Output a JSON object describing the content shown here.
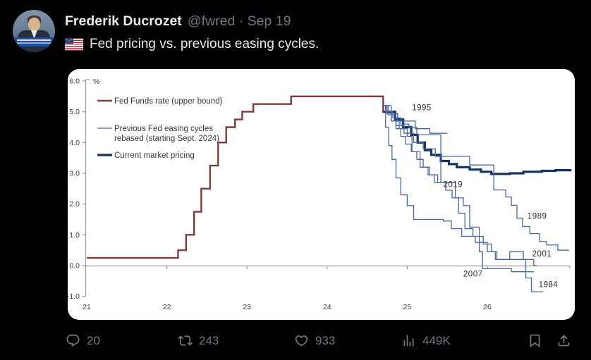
{
  "post": {
    "author": "Frederik Ducrozet",
    "meta": "@fwred · Sep 19",
    "flag_icon": "us-flag",
    "text": "Fed pricing vs. previous easing cycles."
  },
  "engagement": {
    "replies": "20",
    "reposts": "243",
    "likes": "933",
    "views": "449K"
  },
  "chart_data": {
    "type": "line",
    "title": "",
    "unit_label": "%",
    "xlabel": "",
    "ylabel": "%",
    "xlim": [
      20.95,
      27.1
    ],
    "ylim": [
      -1.0,
      6.0
    ],
    "x_ticks": [
      21,
      22,
      23,
      24,
      25,
      26
    ],
    "y_ticks": [
      6.0,
      5.0,
      4.0,
      3.0,
      2.0,
      1.0,
      0.0,
      -1.0
    ],
    "grid": false,
    "legend_position": "top-left",
    "colors": {
      "fed_funds": "#7e3b3b",
      "previous_cycles": "#4a67a0",
      "current_pricing": "#16325f",
      "axis": "#999999"
    },
    "legend": [
      {
        "label": [
          "Fed Funds rate (upper bound)"
        ],
        "color": "#7e3b3b",
        "width": 2.4
      },
      {
        "label": [
          "Previous Fed easing cycles",
          "rebased (starting Sept. 2024)"
        ],
        "color": "#4a67a0",
        "width": 1.3
      },
      {
        "label": [
          "Current market pricing"
        ],
        "color": "#16325f",
        "width": 3.2
      }
    ],
    "series": [
      {
        "name": "Fed Funds rate (upper bound)",
        "color": "#7e3b3b",
        "width": 2.4,
        "step": true,
        "points": [
          [
            21.0,
            0.25
          ],
          [
            22.14,
            0.5
          ],
          [
            22.24,
            1.0
          ],
          [
            22.34,
            1.75
          ],
          [
            22.43,
            2.5
          ],
          [
            22.54,
            3.25
          ],
          [
            22.64,
            4.0
          ],
          [
            22.74,
            4.5
          ],
          [
            22.85,
            4.75
          ],
          [
            22.94,
            5.0
          ],
          [
            23.08,
            5.25
          ],
          [
            23.55,
            5.5
          ],
          [
            24.7,
            5.0
          ],
          [
            24.72,
            5.0
          ]
        ]
      },
      {
        "name": "Current market pricing",
        "color": "#16325f",
        "width": 3.2,
        "step": true,
        "points": [
          [
            24.7,
            5.0
          ],
          [
            24.85,
            4.75
          ],
          [
            24.95,
            4.5
          ],
          [
            25.05,
            4.25
          ],
          [
            25.13,
            4.0
          ],
          [
            25.22,
            3.75
          ],
          [
            25.3,
            3.6
          ],
          [
            25.42,
            3.4
          ],
          [
            25.52,
            3.3
          ],
          [
            25.62,
            3.2
          ],
          [
            25.78,
            3.12
          ],
          [
            25.92,
            3.05
          ],
          [
            26.05,
            2.98
          ],
          [
            26.28,
            3.0
          ],
          [
            26.45,
            3.05
          ],
          [
            26.68,
            3.08
          ],
          [
            26.85,
            3.1
          ],
          [
            27.05,
            3.1
          ]
        ]
      },
      {
        "name": "1995",
        "color": "#4a67a0",
        "width": 1.3,
        "step": true,
        "points": [
          [
            24.69,
            5.2
          ],
          [
            24.76,
            4.95
          ],
          [
            24.88,
            4.7
          ],
          [
            25.1,
            4.45
          ],
          [
            25.28,
            4.3
          ],
          [
            25.5,
            4.3
          ]
        ]
      },
      {
        "name": "2019",
        "color": "#4a67a0",
        "width": 1.3,
        "step": true,
        "points": [
          [
            24.69,
            5.2
          ],
          [
            24.74,
            5.0
          ],
          [
            24.82,
            4.8
          ],
          [
            24.92,
            4.6
          ],
          [
            25.02,
            4.5
          ],
          [
            25.12,
            4.25
          ],
          [
            25.42,
            2.7
          ],
          [
            25.56,
            2.7
          ]
        ]
      },
      {
        "name": "1989",
        "color": "#4a67a0",
        "width": 1.3,
        "step": true,
        "points": [
          [
            24.69,
            5.2
          ],
          [
            24.76,
            4.9
          ],
          [
            24.86,
            4.55
          ],
          [
            24.96,
            4.3
          ],
          [
            25.08,
            4.0
          ],
          [
            25.2,
            3.8
          ],
          [
            25.35,
            3.55
          ],
          [
            25.78,
            3.27
          ],
          [
            26.08,
            2.46
          ],
          [
            26.23,
            2.23
          ],
          [
            26.3,
            1.96
          ],
          [
            26.37,
            1.54
          ],
          [
            26.44,
            1.27
          ],
          [
            26.53,
            1.04
          ],
          [
            26.65,
            0.78
          ],
          [
            26.74,
            0.67
          ],
          [
            26.88,
            0.5
          ],
          [
            27.02,
            0.5
          ]
        ]
      },
      {
        "name": "2001",
        "color": "#4a67a0",
        "width": 1.3,
        "step": true,
        "points": [
          [
            24.69,
            5.2
          ],
          [
            24.74,
            4.95
          ],
          [
            24.8,
            4.7
          ],
          [
            24.86,
            4.45
          ],
          [
            24.92,
            4.2
          ],
          [
            24.98,
            3.95
          ],
          [
            25.05,
            3.7
          ],
          [
            25.12,
            3.45
          ],
          [
            25.2,
            3.2
          ],
          [
            25.28,
            2.95
          ],
          [
            25.38,
            2.7
          ],
          [
            25.48,
            2.45
          ],
          [
            25.56,
            2.2
          ],
          [
            25.64,
            1.7
          ],
          [
            25.72,
            1.2
          ],
          [
            25.82,
            0.95
          ],
          [
            25.95,
            0.7
          ],
          [
            26.05,
            0.45
          ],
          [
            26.12,
            0.2
          ],
          [
            26.55,
            0.2
          ],
          [
            26.58,
            0.0
          ],
          [
            26.62,
            0.0
          ]
        ]
      },
      {
        "name": "2007",
        "color": "#4a67a0",
        "width": 1.3,
        "step": true,
        "points": [
          [
            24.69,
            5.2
          ],
          [
            24.8,
            4.7
          ],
          [
            24.9,
            4.45
          ],
          [
            25.0,
            4.2
          ],
          [
            25.06,
            3.7
          ],
          [
            25.16,
            3.2
          ],
          [
            25.26,
            2.95
          ],
          [
            25.34,
            2.7
          ],
          [
            25.6,
            2.2
          ],
          [
            25.7,
            1.95
          ],
          [
            25.78,
            1.25
          ],
          [
            25.9,
            0.45
          ],
          [
            25.94,
            -0.1
          ],
          [
            26.3,
            -0.2
          ],
          [
            26.58,
            -0.2
          ]
        ]
      },
      {
        "name": "1984",
        "color": "#4a67a0",
        "width": 1.3,
        "step": true,
        "points": [
          [
            24.69,
            5.2
          ],
          [
            24.73,
            4.5
          ],
          [
            24.77,
            3.9
          ],
          [
            24.81,
            3.45
          ],
          [
            24.86,
            2.85
          ],
          [
            24.92,
            2.3
          ],
          [
            25.0,
            1.95
          ],
          [
            25.08,
            1.5
          ],
          [
            25.45,
            1.45
          ],
          [
            25.55,
            1.2
          ],
          [
            25.68,
            0.95
          ],
          [
            25.85,
            0.75
          ],
          [
            26.0,
            0.45
          ],
          [
            26.1,
            0.2
          ],
          [
            26.28,
            0.45
          ],
          [
            26.45,
            0.2
          ],
          [
            26.48,
            -0.4
          ],
          [
            26.55,
            -0.85
          ],
          [
            26.7,
            -0.85
          ]
        ]
      }
    ],
    "annotations": [
      {
        "text": "1995",
        "x": 25.06,
        "y": 5.05
      },
      {
        "text": "2019",
        "x": 25.45,
        "y": 2.55
      },
      {
        "text": "1989",
        "x": 26.5,
        "y": 1.52
      },
      {
        "text": "2001",
        "x": 26.56,
        "y": 0.3
      },
      {
        "text": "2007",
        "x": 25.7,
        "y": -0.35
      },
      {
        "text": "1984",
        "x": 26.64,
        "y": -0.7
      }
    ]
  }
}
